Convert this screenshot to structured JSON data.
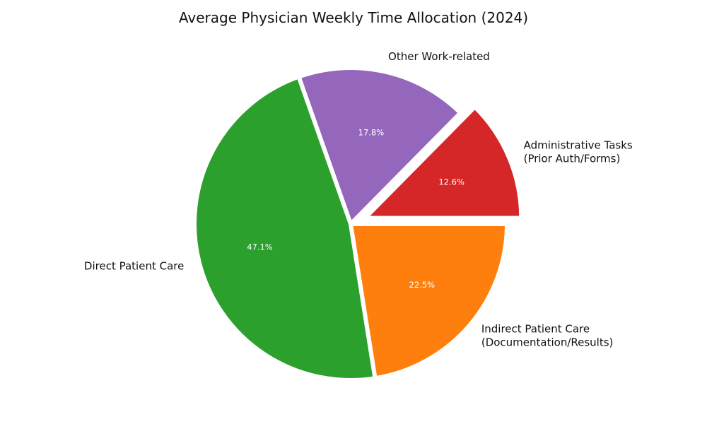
{
  "chart_data": {
    "type": "pie",
    "title": "Average Physician Weekly Time Allocation (2024)",
    "slices": [
      {
        "label": "Administrative Tasks\n(Prior Auth/Forms)",
        "value": 12.6,
        "display": "12.6%",
        "color": "#d62728",
        "exploded": true
      },
      {
        "label": "Other Work-related",
        "value": 17.8,
        "display": "17.8%",
        "color": "#9467bd",
        "exploded": false
      },
      {
        "label": "Direct Patient Care",
        "value": 47.1,
        "display": "47.1%",
        "color": "#2ca02c",
        "exploded": false
      },
      {
        "label": "Indirect Patient Care\n(Documentation/Results)",
        "value": 22.5,
        "display": "22.5%",
        "color": "#ff7f0e",
        "exploded": false
      }
    ],
    "start_angle_deg": 0,
    "direction": "counterclockwise",
    "legend": "none"
  }
}
